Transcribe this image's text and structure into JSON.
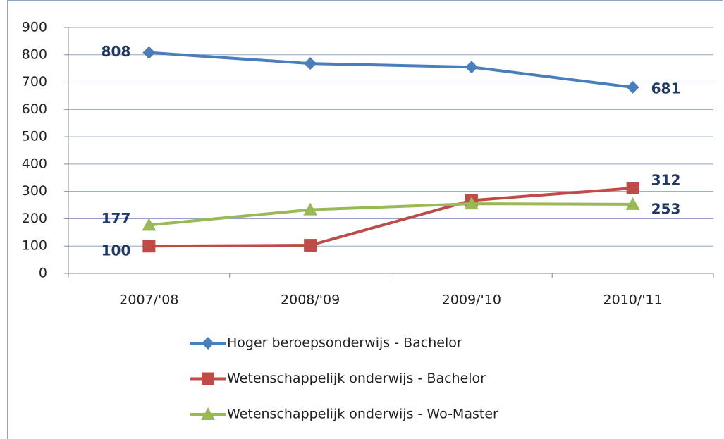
{
  "chart_data": {
    "type": "line",
    "categories": [
      "2007/'08",
      "2008/'09",
      "2009/'10",
      "2010/'11"
    ],
    "series": [
      {
        "name": "Hoger beroepsonderwijs - Bachelor",
        "color": "#4a7ebb",
        "marker": "diamond",
        "values": [
          808,
          768,
          755,
          681
        ],
        "value_labels": [
          "808",
          null,
          null,
          "681"
        ]
      },
      {
        "name": "Wetenschappelijk onderwijs - Bachelor",
        "color": "#be4b48",
        "marker": "square",
        "values": [
          100,
          103,
          267,
          312
        ],
        "value_labels": [
          "100",
          null,
          null,
          "312"
        ]
      },
      {
        "name": "Wetenschappelijk onderwijs - Wo-Master",
        "color": "#98b954",
        "marker": "triangle",
        "values": [
          177,
          233,
          255,
          253
        ],
        "value_labels": [
          "177",
          null,
          null,
          "253"
        ]
      }
    ],
    "ylim": [
      0,
      900
    ],
    "yticks": [
      0,
      100,
      200,
      300,
      400,
      500,
      600,
      700,
      800,
      900
    ],
    "grid": true,
    "legend": "bottom"
  }
}
